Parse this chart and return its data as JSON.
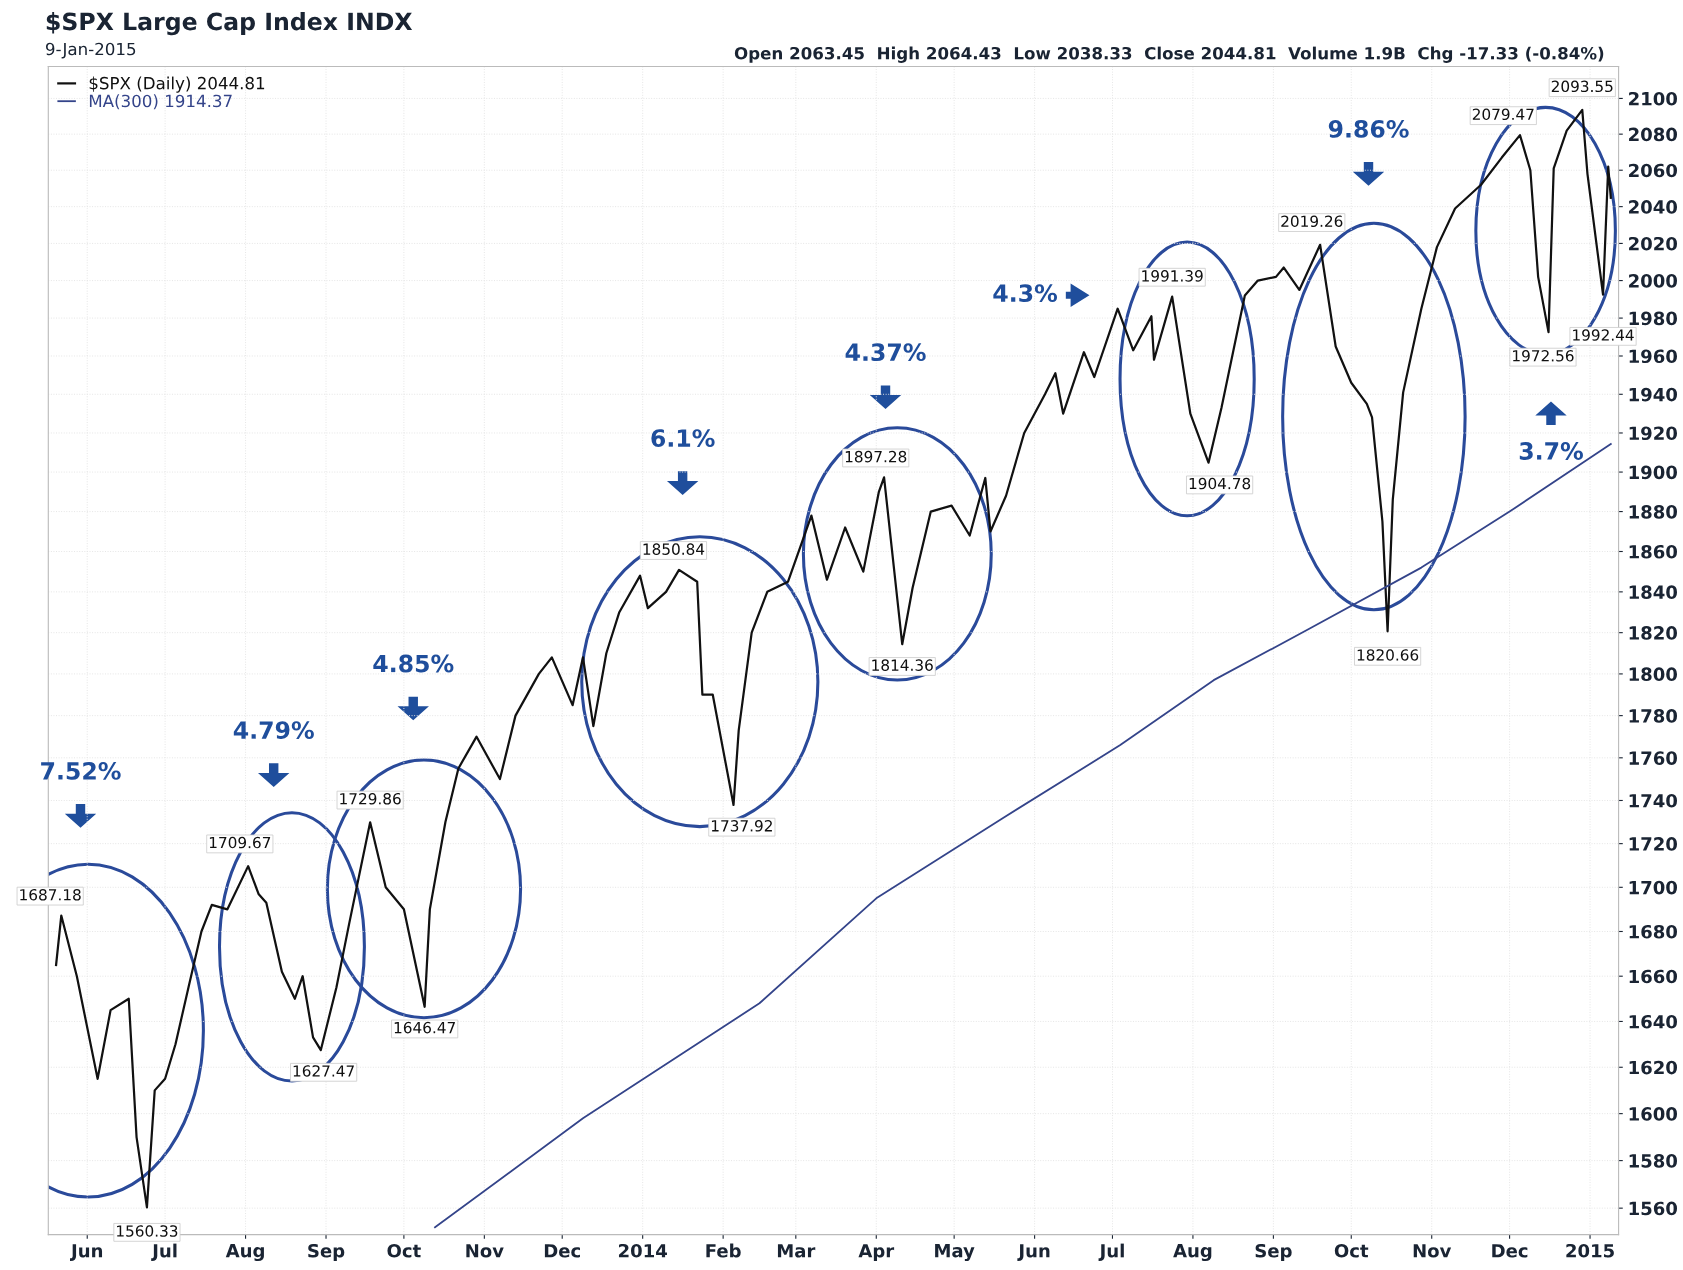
{
  "chart_data": {
    "type": "line",
    "title": "$SPX Large Cap Index INDX",
    "subtitle": "9-Jan-2015",
    "log": "y",
    "grid": true,
    "legend": "top left",
    "line_style": "solid",
    "marker": "none",
    "xlim": [
      "2013-05-17",
      "2015-01-12"
    ],
    "ylim": [
      1549,
      2118
    ],
    "xticks": [
      {
        "value": "2013-06-01",
        "label": "Jun"
      },
      {
        "value": "2013-07-01",
        "label": "Jul"
      },
      {
        "value": "2013-08-01",
        "label": "Aug"
      },
      {
        "value": "2013-09-01",
        "label": "Sep"
      },
      {
        "value": "2013-10-01",
        "label": "Oct"
      },
      {
        "value": "2013-11-01",
        "label": "Nov"
      },
      {
        "value": "2013-12-01",
        "label": "Dec"
      },
      {
        "value": "2014-01-01",
        "label": "2014"
      },
      {
        "value": "2014-02-01",
        "label": "Feb"
      },
      {
        "value": "2014-03-01",
        "label": "Mar"
      },
      {
        "value": "2014-04-01",
        "label": "Apr"
      },
      {
        "value": "2014-05-01",
        "label": "May"
      },
      {
        "value": "2014-06-01",
        "label": "Jun"
      },
      {
        "value": "2014-07-01",
        "label": "Jul"
      },
      {
        "value": "2014-08-01",
        "label": "Aug"
      },
      {
        "value": "2014-09-01",
        "label": "Sep"
      },
      {
        "value": "2014-10-01",
        "label": "Oct"
      },
      {
        "value": "2014-11-01",
        "label": "Nov"
      },
      {
        "value": "2014-12-01",
        "label": "Dec"
      },
      {
        "value": "2015-01-01",
        "label": "2015"
      }
    ],
    "yticks": [
      1560,
      1580,
      1600,
      1620,
      1640,
      1660,
      1680,
      1700,
      1720,
      1740,
      1760,
      1780,
      1800,
      1820,
      1840,
      1860,
      1880,
      1900,
      1920,
      1940,
      1960,
      1980,
      2000,
      2020,
      2040,
      2060,
      2080,
      2100
    ],
    "series": [
      {
        "name": "$SPX (Daily) 2044.81",
        "color": "#111111",
        "x": [
          "2013-05-20",
          "2013-05-22",
          "2013-05-28",
          "2013-06-05",
          "2013-06-10",
          "2013-06-17",
          "2013-06-20",
          "2013-06-24",
          "2013-06-27",
          "2013-07-01",
          "2013-07-05",
          "2013-07-10",
          "2013-07-15",
          "2013-07-19",
          "2013-07-25",
          "2013-08-02",
          "2013-08-06",
          "2013-08-09",
          "2013-08-15",
          "2013-08-20",
          "2013-08-23",
          "2013-08-27",
          "2013-08-30",
          "2013-09-05",
          "2013-09-10",
          "2013-09-18",
          "2013-09-24",
          "2013-10-01",
          "2013-10-09",
          "2013-10-11",
          "2013-10-17",
          "2013-10-22",
          "2013-10-29",
          "2013-11-07",
          "2013-11-13",
          "2013-11-22",
          "2013-11-27",
          "2013-12-05",
          "2013-12-09",
          "2013-12-13",
          "2013-12-18",
          "2013-12-23",
          "2013-12-31",
          "2014-01-03",
          "2014-01-10",
          "2014-01-15",
          "2014-01-22",
          "2014-01-24",
          "2014-01-28",
          "2014-02-05",
          "2014-02-07",
          "2014-02-12",
          "2014-02-18",
          "2014-02-26",
          "2014-03-07",
          "2014-03-13",
          "2014-03-20",
          "2014-03-27",
          "2014-04-02",
          "2014-04-04",
          "2014-04-11",
          "2014-04-15",
          "2014-04-22",
          "2014-04-30",
          "2014-05-07",
          "2014-05-13",
          "2014-05-15",
          "2014-05-21",
          "2014-05-28",
          "2014-06-05",
          "2014-06-09",
          "2014-06-12",
          "2014-06-20",
          "2014-06-24",
          "2014-07-03",
          "2014-07-09",
          "2014-07-16",
          "2014-07-17",
          "2014-07-24",
          "2014-07-31",
          "2014-08-07",
          "2014-08-12",
          "2014-08-21",
          "2014-08-26",
          "2014-09-02",
          "2014-09-05",
          "2014-09-11",
          "2014-09-19",
          "2014-09-25",
          "2014-10-01",
          "2014-10-07",
          "2014-10-09",
          "2014-10-13",
          "2014-10-15",
          "2014-10-17",
          "2014-10-21",
          "2014-10-28",
          "2014-11-03",
          "2014-11-10",
          "2014-11-20",
          "2014-11-28",
          "2014-12-05",
          "2014-12-09",
          "2014-12-12",
          "2014-12-16",
          "2014-12-18",
          "2014-12-23",
          "2014-12-29",
          "2014-12-31",
          "2015-01-06",
          "2015-01-08",
          "2015-01-09"
        ],
        "values": [
          1665,
          1687.18,
          1660,
          1615,
          1645,
          1650,
          1590,
          1560.33,
          1610,
          1615,
          1630,
          1655,
          1680,
          1692,
          1690,
          1709.67,
          1697,
          1693,
          1662,
          1650,
          1660,
          1633,
          1627.47,
          1655,
          1684,
          1729.86,
          1700,
          1690,
          1646.47,
          1690,
          1730,
          1755,
          1770,
          1750,
          1780,
          1800,
          1808,
          1785,
          1808,
          1775,
          1810,
          1830,
          1848,
          1832,
          1840,
          1850.84,
          1845,
          1790,
          1790,
          1737.92,
          1773,
          1820,
          1840,
          1845,
          1878,
          1846,
          1872,
          1850,
          1890,
          1897.28,
          1814.36,
          1842,
          1880,
          1883,
          1868,
          1897,
          1870,
          1888,
          1920,
          1940,
          1951,
          1930,
          1962,
          1949,
          1985,
          1963,
          1981,
          1958,
          1991.39,
          1930,
          1904.78,
          1933,
          1992,
          2000,
          2002,
          2007,
          1995,
          2019.26,
          1965,
          1946,
          1935,
          1928,
          1875,
          1820.66,
          1886,
          1941,
          1985,
          2018,
          2039,
          2052,
          2067,
          2079.47,
          2060,
          2002,
          1972.56,
          2061,
          2082,
          2093.55,
          2058,
          1992.44,
          2062,
          2044.81
        ]
      },
      {
        "name": "MA(300) 1914.37",
        "color": "#34448a",
        "x": [
          "2013-10-13",
          "2013-12-09",
          "2014-02-15",
          "2014-04-01",
          "2014-05-20",
          "2014-07-04",
          "2014-08-09",
          "2014-09-15",
          "2014-10-28",
          "2014-12-01",
          "2015-01-09"
        ],
        "values": [
          1552,
          1598,
          1648,
          1695,
          1732,
          1766,
          1797,
          1822,
          1852,
          1880,
          1914.37
        ]
      }
    ],
    "annotations": [
      "Open 2063.45  High 2064.43  Low 2038.33  Close 2044.81  Volume 1.9B  Chg -17.33 (-0.84%)",
      "7.52%",
      "4.79%",
      "4.85%",
      "6.1%",
      "4.37%",
      "4.3%",
      "9.86%",
      "3.7%",
      {
        "text": "1687.18",
        "x": "2013-05-22",
        "y": 1687.18
      },
      {
        "text": "1560.33",
        "x": "2013-06-24",
        "y": 1560.33
      },
      {
        "text": "1709.67",
        "x": "2013-08-02",
        "y": 1709.67
      },
      {
        "text": "1627.47",
        "x": "2013-08-30",
        "y": 1627.47
      },
      {
        "text": "1729.86",
        "x": "2013-09-18",
        "y": 1729.86
      },
      {
        "text": "1646.47",
        "x": "2013-10-09",
        "y": 1646.47
      },
      {
        "text": "1850.84",
        "x": "2014-01-15",
        "y": 1850.84
      },
      {
        "text": "1737.92",
        "x": "2014-02-05",
        "y": 1737.92
      },
      {
        "text": "1897.28",
        "x": "2014-04-04",
        "y": 1897.28
      },
      {
        "text": "1814.36",
        "x": "2014-04-11",
        "y": 1814.36
      },
      {
        "text": "1991.39",
        "x": "2014-07-24",
        "y": 1991.39
      },
      {
        "text": "1904.78",
        "x": "2014-08-07",
        "y": 1904.78
      },
      {
        "text": "2019.26",
        "x": "2014-09-19",
        "y": 2019.26
      },
      {
        "text": "1820.66",
        "x": "2014-10-15",
        "y": 1820.66
      },
      {
        "text": "2079.47",
        "x": "2014-12-05",
        "y": 2079.47
      },
      {
        "text": "1972.56",
        "x": "2014-12-16",
        "y": 1972.56
      },
      {
        "text": "2093.55",
        "x": "2014-12-29",
        "y": 2093.55
      },
      {
        "text": "1992.44",
        "x": "2015-01-06",
        "y": 1992.44
      }
    ]
  }
}
